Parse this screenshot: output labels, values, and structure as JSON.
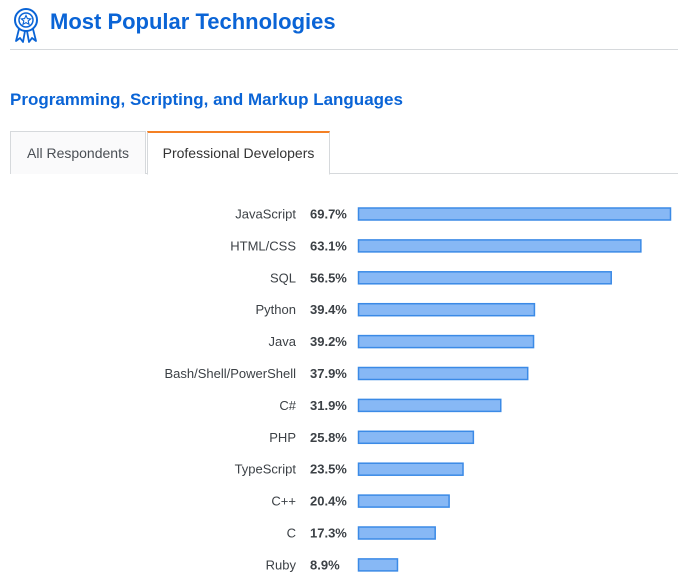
{
  "header": {
    "title": "Most Popular Technologies",
    "icon": "award-ribbon-icon"
  },
  "section": {
    "title": "Programming, Scripting, and Markup Languages"
  },
  "tabs": [
    {
      "label": "All Respondents",
      "active": false
    },
    {
      "label": "Professional Developers",
      "active": true
    }
  ],
  "colors": {
    "accent": "#0a64d6",
    "bar_fill": "#87b8f5",
    "bar_stroke": "#3b8ae6",
    "tab_active": "#f48024"
  },
  "chart_data": {
    "type": "bar",
    "orientation": "horizontal",
    "categories": [
      "JavaScript",
      "HTML/CSS",
      "SQL",
      "Python",
      "Java",
      "Bash/Shell/PowerShell",
      "C#",
      "PHP",
      "TypeScript",
      "C++",
      "C",
      "Ruby"
    ],
    "values": [
      69.7,
      63.1,
      56.5,
      39.4,
      39.2,
      37.9,
      31.9,
      25.8,
      23.5,
      20.4,
      17.3,
      8.9
    ],
    "value_labels": [
      "69.7%",
      "63.1%",
      "56.5%",
      "39.4%",
      "39.2%",
      "37.9%",
      "31.9%",
      "25.8%",
      "23.5%",
      "20.4%",
      "17.3%",
      "8.9%"
    ],
    "unit": "%",
    "xlim": [
      0,
      69.7
    ],
    "title": "",
    "xlabel": "",
    "ylabel": "",
    "grid": false,
    "legend": "none"
  }
}
